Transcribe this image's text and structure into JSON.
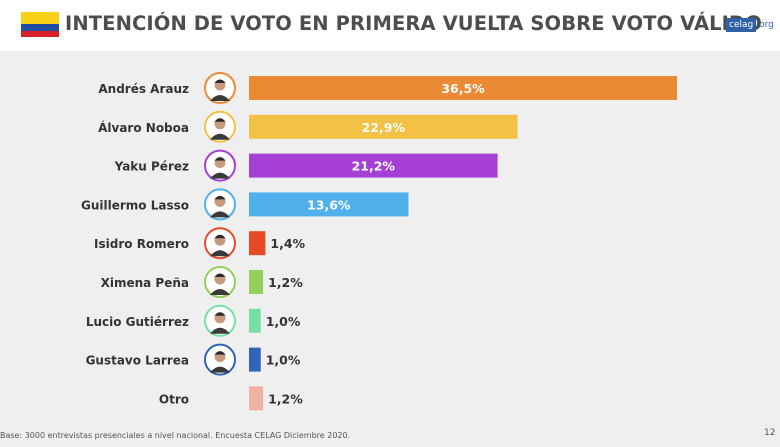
{
  "title": "INTENCIÓN DE VOTO EN PRIMERA VUELTA SOBRE VOTO VÁLIDO",
  "logo": {
    "box_text": "celag",
    "suffix": ".org"
  },
  "footer": "Base: 3000 entrevistas presenciales a nivel nacional. Encuesta CELAG Diciembre 2020.",
  "page_number": "12",
  "chart_data": {
    "type": "bar",
    "orientation": "horizontal",
    "categories": [
      "Andrés Arauz",
      "Álvaro Noboa",
      "Yaku Pérez",
      "Guillermo Lasso",
      "Isidro Romero",
      "Ximena Peña",
      "Lucio Gutiérrez",
      "Gustavo Larrea",
      "Otro"
    ],
    "values": [
      36.5,
      22.9,
      21.2,
      13.6,
      1.4,
      1.2,
      1.0,
      1.0,
      1.2
    ],
    "labels": [
      "36,5%",
      "22,9%",
      "21,2%",
      "13,6%",
      "1,4%",
      "1,2%",
      "1,0%",
      "1,0%",
      "1,2%"
    ],
    "colors": [
      "#ea8a35",
      "#f3c145",
      "#a63fd6",
      "#4fb0ec",
      "#e64b25",
      "#93cf5b",
      "#77dfa6",
      "#2f64b7",
      "#f1b3a1"
    ],
    "photo_ring_colors": [
      "#ea8a35",
      "#f3c145",
      "#a63fd6",
      "#4fb0ec",
      "#e64b25",
      "#93cf5b",
      "#77dfa6",
      "#2f64b7",
      null
    ],
    "xlim": [
      0,
      36.5
    ],
    "grid": false,
    "legend": "none"
  }
}
